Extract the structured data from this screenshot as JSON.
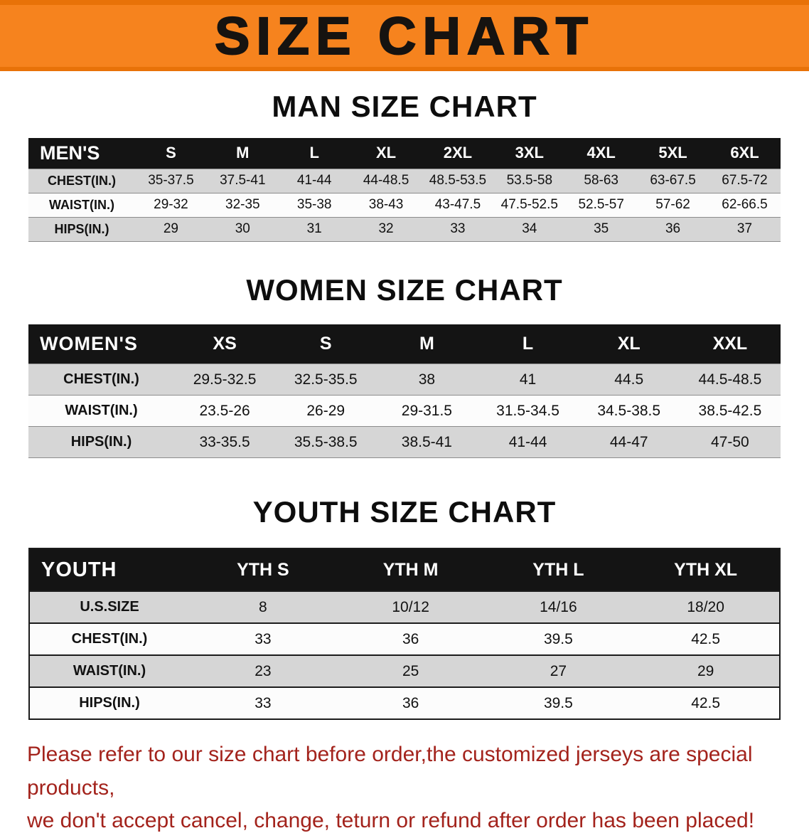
{
  "banner": {
    "title": "SIZE CHART"
  },
  "colors": {
    "banner_bg": "#f6831e",
    "banner_edge": "#e87208",
    "header_bg": "#141414",
    "row_gray": "#d6d6d6",
    "row_white": "#fcfcfc",
    "note_red": "#a3231c"
  },
  "chart_data": [
    {
      "type": "table",
      "title": "MAN SIZE CHART",
      "header": [
        "MEN'S",
        "S",
        "M",
        "L",
        "XL",
        "2XL",
        "3XL",
        "4XL",
        "5XL",
        "6XL"
      ],
      "rows": [
        [
          "CHEST(IN.)",
          "35-37.5",
          "37.5-41",
          "41-44",
          "44-48.5",
          "48.5-53.5",
          "53.5-58",
          "58-63",
          "63-67.5",
          "67.5-72"
        ],
        [
          "WAIST(IN.)",
          "29-32",
          "32-35",
          "35-38",
          "38-43",
          "43-47.5",
          "47.5-52.5",
          "52.5-57",
          "57-62",
          "62-66.5"
        ],
        [
          "HIPS(IN.)",
          "29",
          "30",
          "31",
          "32",
          "33",
          "34",
          "35",
          "36",
          "37"
        ]
      ]
    },
    {
      "type": "table",
      "title": "WOMEN SIZE CHART",
      "header": [
        "WOMEN'S",
        "XS",
        "S",
        "M",
        "L",
        "XL",
        "XXL"
      ],
      "rows": [
        [
          "CHEST(IN.)",
          "29.5-32.5",
          "32.5-35.5",
          "38",
          "41",
          "44.5",
          "44.5-48.5"
        ],
        [
          "WAIST(IN.)",
          "23.5-26",
          "26-29",
          "29-31.5",
          "31.5-34.5",
          "34.5-38.5",
          "38.5-42.5"
        ],
        [
          "HIPS(IN.)",
          "33-35.5",
          "35.5-38.5",
          "38.5-41",
          "41-44",
          "44-47",
          "47-50"
        ]
      ]
    },
    {
      "type": "table",
      "title": "YOUTH SIZE CHART",
      "header": [
        "YOUTH",
        "YTH S",
        "YTH M",
        "YTH L",
        "YTH XL"
      ],
      "rows": [
        [
          "U.S.SIZE",
          "8",
          "10/12",
          "14/16",
          "18/20"
        ],
        [
          "CHEST(IN.)",
          "33",
          "36",
          "39.5",
          "42.5"
        ],
        [
          "WAIST(IN.)",
          "23",
          "25",
          "27",
          "29"
        ],
        [
          "HIPS(IN.)",
          "33",
          "36",
          "39.5",
          "42.5"
        ]
      ]
    }
  ],
  "footer": {
    "lines": [
      "Please refer to our size chart before order,the customized jerseys are special products,",
      "we don't accept cancel, change, teturn or refund after order has been placed!"
    ]
  }
}
